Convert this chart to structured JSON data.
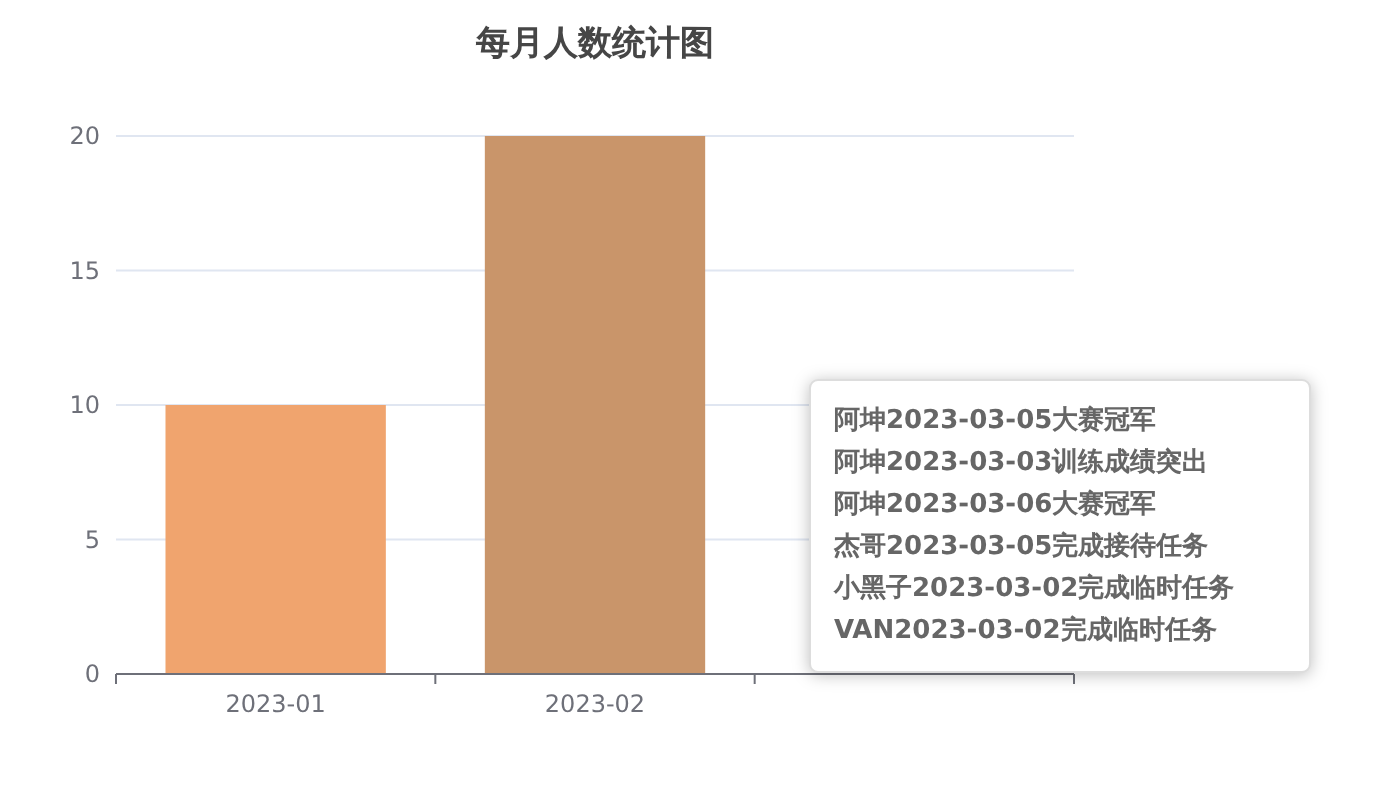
{
  "chart_data": {
    "type": "bar",
    "title": "每月人数统计图",
    "categories": [
      "2023-01",
      "2023-02",
      null
    ],
    "values": [
      10,
      20,
      null
    ],
    "colors": [
      "#f0a46e",
      "#c9956a",
      null
    ],
    "ylim": [
      0,
      20
    ],
    "yticks": [
      0,
      5,
      10,
      15,
      20
    ],
    "grid": "y",
    "annotations": [
      "阿坤2023-03-05大赛冠军",
      "阿坤2023-03-03训练成绩突出",
      "阿坤2023-03-06大赛冠军",
      "杰哥2023-03-05完成接待任务",
      "小黑子2023-03-02完成临时任务",
      "VAN2023-03-02完成临时任务"
    ]
  }
}
